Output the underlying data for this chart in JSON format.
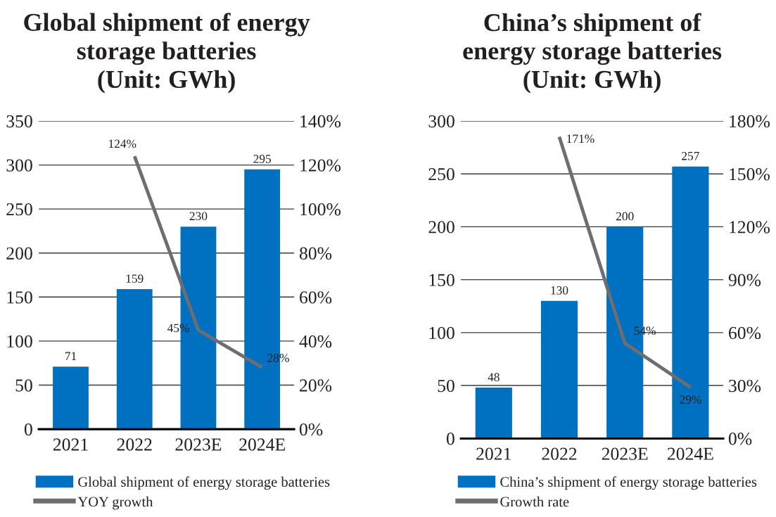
{
  "chart_data": [
    {
      "type": "bar",
      "title": "Global shipment of energy\nstorage batteries\n(Unit: GWh)",
      "categories": [
        "2021",
        "2022",
        "2023E",
        "2024E"
      ],
      "series": [
        {
          "name": "Global shipment of energy storage batteries",
          "color": "#0070c0",
          "values": [
            71,
            159,
            230,
            295
          ],
          "value_labels": [
            "71",
            "159",
            "230",
            "295"
          ]
        },
        {
          "name": "YOY growth",
          "type": "line",
          "axis": "y2",
          "color": "#6d6e71",
          "values": [
            null,
            124,
            45,
            28
          ],
          "value_labels": [
            null,
            "124%",
            "45%",
            "28%"
          ]
        }
      ],
      "ylim": [
        0,
        350
      ],
      "yticks": [
        0,
        50,
        100,
        150,
        200,
        250,
        300,
        350
      ],
      "y2lim": [
        0,
        140
      ],
      "y2ticks": [
        {
          "value": 0,
          "label": "0%"
        },
        {
          "value": 20,
          "label": "20%"
        },
        {
          "value": 40,
          "label": "40%"
        },
        {
          "value": 60,
          "label": "60%"
        },
        {
          "value": 80,
          "label": "80%"
        },
        {
          "value": 100,
          "label": "100%"
        },
        {
          "value": 120,
          "label": "120%"
        },
        {
          "value": 140,
          "label": "140%"
        }
      ],
      "grid": "y",
      "legend": "bottom"
    },
    {
      "type": "bar",
      "title": "China’s shipment of\nenergy storage batteries\n(Unit: GWh)",
      "categories": [
        "2021",
        "2022",
        "2023E",
        "2024E"
      ],
      "series": [
        {
          "name": "China’s shipment of energy storage batteries",
          "color": "#0070c0",
          "values": [
            48,
            130,
            200,
            257
          ],
          "value_labels": [
            "48",
            "130",
            "200",
            "257"
          ]
        },
        {
          "name": "Growth rate",
          "type": "line",
          "axis": "y2",
          "color": "#6d6e71",
          "values": [
            null,
            171,
            54,
            29
          ],
          "value_labels": [
            null,
            "171%",
            "54%",
            "29%"
          ]
        }
      ],
      "ylim": [
        0,
        300
      ],
      "yticks": [
        0,
        50,
        100,
        150,
        200,
        250,
        300
      ],
      "y2lim": [
        0,
        180
      ],
      "y2ticks": [
        {
          "value": 0,
          "label": "0%"
        },
        {
          "value": 30,
          "label": "30%"
        },
        {
          "value": 60,
          "label": "60%"
        },
        {
          "value": 90,
          "label": "90%"
        },
        {
          "value": 120,
          "label": "120%"
        },
        {
          "value": 150,
          "label": "150%"
        },
        {
          "value": 180,
          "label": "180%"
        }
      ],
      "grid": "y",
      "legend": "bottom"
    }
  ]
}
